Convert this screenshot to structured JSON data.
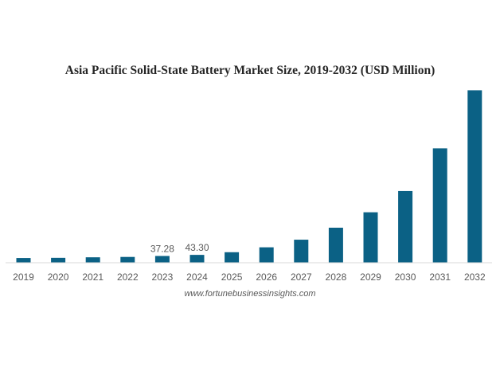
{
  "chart_data": {
    "type": "bar",
    "title": "Asia Pacific Solid-State Battery Market Size, 2019-2032 (USD Million)",
    "xlabel": "",
    "ylabel": "",
    "categories": [
      "2019",
      "2020",
      "2021",
      "2022",
      "2023",
      "2024",
      "2025",
      "2026",
      "2027",
      "2028",
      "2029",
      "2030",
      "2031",
      "2032"
    ],
    "series": [
      {
        "name": "Asia Pacific Solid-State Battery Market Size (USD Million)",
        "values": [
          26,
          27,
          30,
          32,
          37.28,
          43.3,
          58,
          85,
          127,
          193,
          278,
          395,
          630,
          950
        ],
        "color": "#0b6185"
      }
    ],
    "data_labels": [
      {
        "category": "2023",
        "text": "37.28"
      },
      {
        "category": "2024",
        "text": "43.30"
      }
    ],
    "ylim": [
      0,
      1000
    ],
    "grid": false,
    "y_axis_visible": false,
    "legend": "none"
  },
  "source": "www.fortunebusinessinsights.com"
}
